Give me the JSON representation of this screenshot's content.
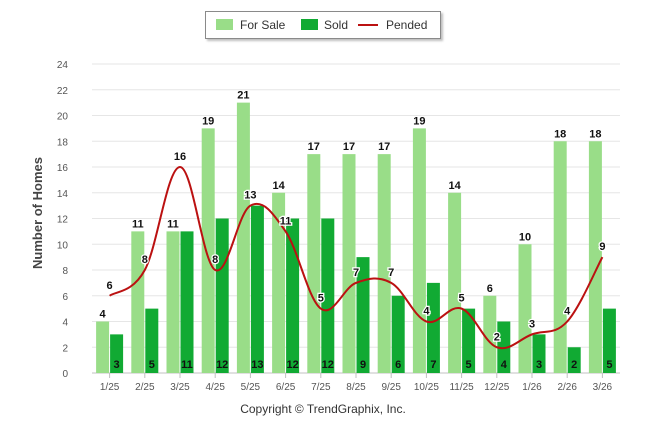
{
  "chart_data": {
    "type": "bar",
    "title": "",
    "xlabel": "",
    "ylabel": "Number of Homes",
    "ylim": [
      0,
      24
    ],
    "yticks": [
      0,
      2,
      4,
      6,
      8,
      10,
      12,
      14,
      16,
      18,
      20,
      22,
      24
    ],
    "categories": [
      "1/25",
      "2/25",
      "3/25",
      "4/25",
      "5/25",
      "6/25",
      "7/25",
      "8/25",
      "9/25",
      "10/25",
      "11/25",
      "12/25",
      "1/26",
      "2/26",
      "3/26"
    ],
    "series": [
      {
        "name": "For Sale",
        "kind": "bar",
        "color": "#99dd88",
        "values": [
          4,
          11,
          11,
          19,
          21,
          14,
          17,
          17,
          17,
          19,
          14,
          6,
          10,
          18,
          18
        ]
      },
      {
        "name": "Sold",
        "kind": "bar",
        "color": "#11aa33",
        "values": [
          3,
          5,
          11,
          12,
          13,
          12,
          12,
          9,
          6,
          7,
          5,
          4,
          3,
          2,
          5
        ]
      },
      {
        "name": "Pended",
        "kind": "line",
        "color": "#bb1111",
        "values": [
          6,
          8,
          16,
          8,
          13,
          11,
          5,
          7,
          7,
          4,
          5,
          2,
          3,
          4,
          9
        ]
      }
    ],
    "legend_position": "top-center",
    "grid": true
  },
  "footer": {
    "copyright": "Copyright © TrendGraphix, Inc."
  }
}
